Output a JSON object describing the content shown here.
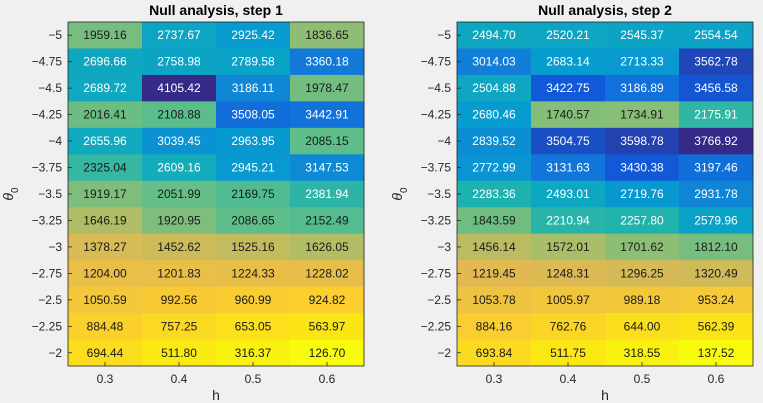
{
  "chart_data": [
    {
      "type": "heatmap",
      "title": "Null analysis, step 1",
      "xlabel": "h",
      "ylabel_main": "θ",
      "ylabel_sub": "0",
      "x": [
        "0.3",
        "0.4",
        "0.5",
        "0.6"
      ],
      "y": [
        "-5",
        "-4.75",
        "-4.5",
        "-4.25",
        "-4",
        "-3.75",
        "-3.5",
        "-3.25",
        "-3",
        "-2.75",
        "-2.5",
        "-2.25",
        "-2"
      ],
      "values": [
        [
          "1959.16",
          "2737.67",
          "2925.42",
          "1836.65"
        ],
        [
          "2696.66",
          "2758.98",
          "2789.58",
          "3360.18"
        ],
        [
          "2689.72",
          "4105.42",
          "3186.11",
          "1978.47"
        ],
        [
          "2016.41",
          "2108.88",
          "3508.05",
          "3442.91"
        ],
        [
          "2655.96",
          "3039.45",
          "2963.95",
          "2085.15"
        ],
        [
          "2325.04",
          "2609.16",
          "2945.21",
          "3147.53"
        ],
        [
          "1919.17",
          "2051.99",
          "2169.75",
          "2381.94"
        ],
        [
          "1646.19",
          "1920.95",
          "2086.65",
          "2152.49"
        ],
        [
          "1378.27",
          "1452.62",
          "1525.16",
          "1626.05"
        ],
        [
          "1204.00",
          "1201.83",
          "1224.33",
          "1228.02"
        ],
        [
          "1050.59",
          "992.56",
          "960.99",
          "924.82"
        ],
        [
          "884.48",
          "757.25",
          "653.05",
          "563.97"
        ],
        [
          "694.44",
          "511.80",
          "316.37",
          "126.70"
        ]
      ]
    },
    {
      "type": "heatmap",
      "title": "Null analysis, step 2",
      "xlabel": "h",
      "ylabel_main": "θ",
      "ylabel_sub": "0",
      "x": [
        "0.3",
        "0.4",
        "0.5",
        "0.6"
      ],
      "y": [
        "-5",
        "-4.75",
        "-4.5",
        "-4.25",
        "-4",
        "-3.75",
        "-3.5",
        "-3.25",
        "-3",
        "-2.75",
        "-2.5",
        "-2.25",
        "-2"
      ],
      "values": [
        [
          "2494.70",
          "2520.21",
          "2545.37",
          "2554.54"
        ],
        [
          "3014.03",
          "2683.14",
          "2713.33",
          "3562.78"
        ],
        [
          "2504.88",
          "3422.75",
          "3186.89",
          "3456.58"
        ],
        [
          "2680.46",
          "1740.57",
          "1734.91",
          "2175.91"
        ],
        [
          "2839.52",
          "3504.75",
          "3598.78",
          "3766.92"
        ],
        [
          "2772.99",
          "3131.63",
          "3430.38",
          "3197.46"
        ],
        [
          "2283.36",
          "2493.01",
          "2719.76",
          "2931.78"
        ],
        [
          "1843.59",
          "2210.94",
          "2257.80",
          "2579.96"
        ],
        [
          "1456.14",
          "1572.01",
          "1701.62",
          "1812.10"
        ],
        [
          "1219.45",
          "1248.31",
          "1296.25",
          "1320.49"
        ],
        [
          "1053.78",
          "1005.97",
          "989.18",
          "953.24"
        ],
        [
          "884.16",
          "762.76",
          "644.00",
          "562.39"
        ],
        [
          "693.84",
          "511.75",
          "318.55",
          "137.52"
        ]
      ]
    }
  ]
}
